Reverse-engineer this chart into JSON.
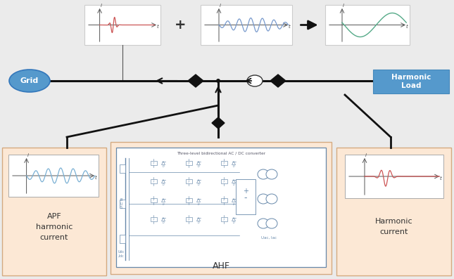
{
  "bg_color": "#ebebeb",
  "panel_bg": "#fce8d5",
  "panel_border": "#d4aa80",
  "grid_label": "Grid",
  "grid_ellipse_color": "#5599cc",
  "harmonic_load_label": "Harmonic\nLoad",
  "harmonic_load_bg": "#5599cc",
  "apf_label": "APF\nharmonic\ncurrent",
  "harmonic_current_label": "Harmonic\ncurrent",
  "ahf_label": "AHF",
  "converter_label": "Three-level bidirectional AC / DC converter",
  "wave_red": "#cc5555",
  "wave_blue": "#7799cc",
  "wave_green": "#55aa88",
  "wave_light_blue": "#7ab0d4",
  "line_color": "#111111",
  "circuit_color": "#6688aa"
}
